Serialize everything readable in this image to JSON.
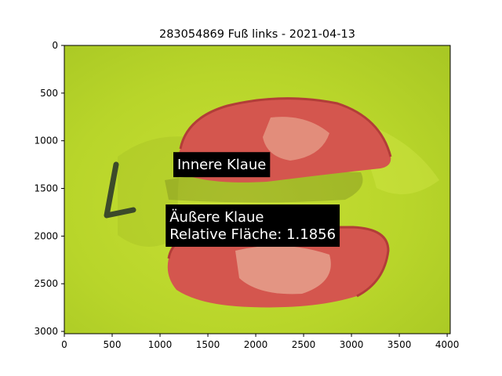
{
  "chart_data": {
    "type": "image",
    "title": "283054869 Fuß links - 2021-04-13",
    "xlim": [
      0,
      4032
    ],
    "ylim": [
      3024,
      0
    ],
    "xticks": [
      0,
      500,
      1000,
      1500,
      2000,
      2500,
      3000,
      3500,
      4000
    ],
    "yticks": [
      0,
      500,
      1000,
      1500,
      2000,
      2500,
      3000
    ],
    "annotations": [
      {
        "lines": [
          "Innere Klaue"
        ],
        "x": 1180,
        "y": 1300
      },
      {
        "lines": [
          "Äußere Klaue",
          "Relative Fläche: 1.1856"
        ],
        "x": 1100,
        "y": 2030
      }
    ],
    "colors": {
      "background": "#b9d62a",
      "mask": "#d8574f",
      "annotation_box": "#000000"
    }
  }
}
